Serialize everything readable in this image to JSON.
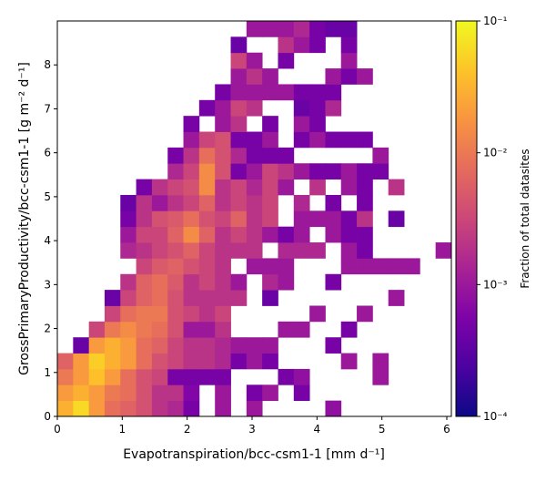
{
  "chart_data": {
    "type": "hist2d",
    "xlabel": "Evapotranspiration/bcc-csm1-1 [mm d⁻¹]",
    "ylabel": "GrossPrimaryProductivity/bcc-csm1-1 [g m⁻² d⁻¹]",
    "colorbar_label": "Fraction of total datasites",
    "colormap": "plasma",
    "color_scale": "log",
    "clim": [
      0.0001,
      0.1
    ],
    "cticks": [
      {
        "value": 0.0001,
        "label": "10⁻⁴"
      },
      {
        "value": 0.001,
        "label": "10⁻³"
      },
      {
        "value": 0.01,
        "label": "10⁻²"
      },
      {
        "value": 0.1,
        "label": "10⁻¹"
      }
    ],
    "xlim": [
      0,
      6.07
    ],
    "ylim": [
      0,
      9
    ],
    "xticks": [
      0,
      1,
      2,
      3,
      4,
      5,
      6
    ],
    "yticks": [
      0,
      1,
      2,
      3,
      4,
      5,
      6,
      7,
      8
    ],
    "xbins": [
      0,
      0.243,
      0.486,
      0.728,
      0.971,
      1.214,
      1.457,
      1.7,
      1.942,
      2.185,
      2.428,
      2.671,
      2.914,
      3.156,
      3.399,
      3.642,
      3.885,
      4.128,
      4.37,
      4.613,
      4.856,
      5.099,
      5.342,
      5.584,
      5.827,
      6.07
    ],
    "ybins": [
      0,
      0.36,
      0.72,
      1.08,
      1.44,
      1.8,
      2.16,
      2.52,
      2.88,
      3.24,
      3.6,
      3.96,
      4.32,
      4.68,
      5.04,
      5.4,
      5.76,
      6.12,
      6.48,
      6.84,
      7.2,
      7.56,
      7.92,
      8.28,
      8.64,
      9
    ],
    "z": [
      [
        0.03,
        0.06,
        0.02,
        0.008,
        0.006,
        0.004,
        0.002,
        0.0015,
        0.0005,
        null,
        0.001,
        null,
        0.001,
        null,
        null,
        null,
        null,
        0.0008,
        null,
        null,
        null,
        null,
        null,
        null,
        null
      ],
      [
        0.02,
        0.03,
        0.02,
        0.01,
        0.008,
        0.004,
        0.002,
        0.002,
        0.0006,
        null,
        0.001,
        null,
        0.0005,
        0.001,
        null,
        0.0005,
        null,
        null,
        null,
        null,
        null,
        null,
        null,
        null,
        null
      ],
      [
        0.01,
        0.02,
        0.04,
        0.02,
        0.008,
        0.004,
        0.003,
        0.0005,
        0.0005,
        0.0005,
        0.0005,
        null,
        null,
        null,
        0.0005,
        0.0008,
        null,
        null,
        null,
        null,
        0.001,
        null,
        null,
        null,
        null
      ],
      [
        0.006,
        0.02,
        0.05,
        0.03,
        0.02,
        0.008,
        0.004,
        0.003,
        0.002,
        0.002,
        0.0015,
        0.0005,
        0.001,
        0.0005,
        null,
        null,
        null,
        null,
        0.001,
        null,
        0.001,
        null,
        null,
        null,
        null
      ],
      [
        null,
        0.0004,
        0.02,
        0.03,
        0.02,
        0.008,
        0.006,
        0.003,
        0.002,
        0.002,
        0.0015,
        0.001,
        0.001,
        0.001,
        null,
        null,
        null,
        0.0005,
        null,
        null,
        null,
        null,
        null,
        null,
        null
      ],
      [
        null,
        null,
        0.003,
        0.01,
        0.015,
        0.01,
        0.008,
        0.004,
        0.001,
        0.001,
        0.002,
        null,
        null,
        null,
        0.001,
        0.001,
        null,
        null,
        0.0005,
        null,
        null,
        null,
        null,
        null,
        null
      ],
      [
        null,
        null,
        null,
        0.003,
        0.008,
        0.01,
        0.01,
        0.004,
        0.003,
        0.002,
        0.003,
        null,
        null,
        null,
        null,
        null,
        0.001,
        null,
        null,
        0.001,
        null,
        null,
        null,
        null,
        null
      ],
      [
        null,
        null,
        null,
        0.0004,
        0.003,
        0.006,
        0.008,
        0.004,
        0.002,
        0.002,
        0.002,
        0.002,
        null,
        0.0004,
        null,
        null,
        null,
        null,
        null,
        null,
        null,
        0.001,
        null,
        null,
        null
      ],
      [
        null,
        null,
        null,
        null,
        0.002,
        0.006,
        0.008,
        0.005,
        0.002,
        0.003,
        0.002,
        0.001,
        null,
        0.0015,
        0.001,
        null,
        null,
        0.0005,
        null,
        null,
        null,
        null,
        null,
        null,
        null
      ],
      [
        null,
        null,
        null,
        null,
        null,
        0.003,
        0.005,
        0.006,
        0.004,
        0.003,
        0.002,
        null,
        0.001,
        0.001,
        0.001,
        null,
        null,
        null,
        0.001,
        0.001,
        0.001,
        0.001,
        0.001,
        null,
        null
      ],
      [
        null,
        null,
        null,
        null,
        0.0015,
        0.002,
        0.003,
        0.004,
        0.006,
        0.003,
        0.002,
        0.002,
        0.002,
        null,
        0.0015,
        0.0015,
        0.0015,
        null,
        0.001,
        0.0005,
        null,
        null,
        null,
        null,
        0.001
      ],
      [
        null,
        null,
        null,
        null,
        0.001,
        0.003,
        0.003,
        0.006,
        0.015,
        0.006,
        0.002,
        0.003,
        0.002,
        0.001,
        0.0005,
        0.001,
        null,
        0.001,
        0.0005,
        0.0005,
        null,
        null,
        null,
        null,
        null
      ],
      [
        null,
        null,
        null,
        null,
        0.0005,
        0.002,
        0.004,
        0.005,
        0.008,
        0.004,
        0.003,
        0.006,
        0.002,
        0.003,
        null,
        0.001,
        0.001,
        0.001,
        0.0005,
        0.002,
        null,
        0.0004,
        null,
        null,
        null
      ],
      [
        null,
        null,
        null,
        null,
        0.0004,
        0.002,
        0.001,
        0.002,
        0.003,
        0.006,
        0.002,
        0.003,
        0.002,
        0.003,
        null,
        0.0015,
        null,
        0.0005,
        null,
        0.0005,
        null,
        null,
        null,
        null,
        null
      ],
      [
        null,
        null,
        null,
        null,
        null,
        0.0005,
        0.002,
        0.003,
        0.004,
        0.015,
        0.002,
        0.003,
        0.0015,
        0.003,
        0.001,
        null,
        0.002,
        null,
        0.001,
        0.0005,
        null,
        0.002,
        null,
        null,
        null
      ],
      [
        null,
        null,
        null,
        null,
        null,
        null,
        null,
        0.0015,
        0.003,
        0.015,
        0.004,
        0.0005,
        0.001,
        0.003,
        0.002,
        0.001,
        0.0005,
        0.0005,
        0.001,
        0.0005,
        0.0005,
        null,
        null,
        null,
        null
      ],
      [
        null,
        null,
        null,
        null,
        null,
        null,
        null,
        0.0005,
        0.002,
        0.008,
        0.004,
        0.0015,
        0.0005,
        0.0005,
        0.0005,
        null,
        null,
        null,
        null,
        null,
        0.001,
        null,
        null,
        null,
        null
      ],
      [
        null,
        null,
        null,
        null,
        null,
        null,
        null,
        null,
        0.001,
        0.003,
        0.004,
        0.0005,
        0.0005,
        0.001,
        null,
        0.0005,
        0.001,
        0.0005,
        0.0005,
        0.0005,
        null,
        null,
        null,
        null,
        null
      ],
      [
        null,
        null,
        null,
        null,
        null,
        null,
        null,
        null,
        0.0005,
        null,
        0.001,
        0.002,
        null,
        0.0005,
        null,
        0.001,
        0.0005,
        null,
        null,
        null,
        null,
        null,
        null,
        null,
        null
      ],
      [
        null,
        null,
        null,
        null,
        null,
        null,
        null,
        null,
        null,
        0.0005,
        0.001,
        0.003,
        0.002,
        null,
        null,
        0.0004,
        0.0005,
        0.0015,
        null,
        null,
        null,
        null,
        null,
        null,
        null
      ],
      [
        null,
        null,
        null,
        null,
        null,
        null,
        null,
        null,
        null,
        null,
        0.0005,
        0.001,
        0.001,
        0.001,
        0.001,
        0.0005,
        0.0005,
        0.0005,
        null,
        null,
        null,
        null,
        null,
        null,
        null
      ],
      [
        null,
        null,
        null,
        null,
        null,
        null,
        null,
        null,
        null,
        null,
        null,
        0.001,
        0.002,
        0.001,
        null,
        null,
        null,
        0.001,
        0.0005,
        0.001,
        null,
        null,
        null,
        null,
        null
      ],
      [
        null,
        null,
        null,
        null,
        null,
        null,
        null,
        null,
        null,
        null,
        null,
        0.003,
        0.001,
        null,
        0.0005,
        null,
        null,
        null,
        0.001,
        null,
        null,
        null,
        null,
        null,
        null
      ],
      [
        null,
        null,
        null,
        null,
        null,
        null,
        null,
        null,
        null,
        null,
        null,
        0.0004,
        null,
        null,
        0.002,
        0.001,
        0.0005,
        null,
        0.0005,
        null,
        null,
        null,
        null,
        null,
        null
      ],
      [
        null,
        null,
        null,
        null,
        null,
        null,
        null,
        null,
        null,
        null,
        null,
        null,
        0.001,
        0.001,
        0.001,
        0.0015,
        0.0005,
        0.0004,
        0.0004,
        null,
        null,
        null,
        null,
        null,
        null
      ]
    ]
  }
}
